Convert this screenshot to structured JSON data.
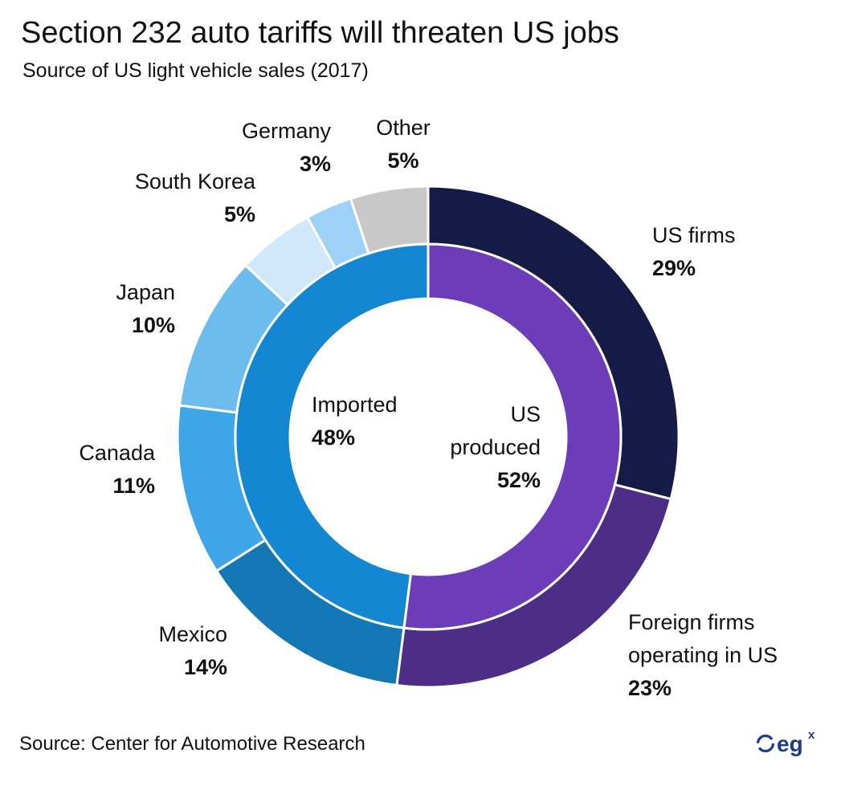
{
  "title": "Section 232 auto tariffs will threaten US jobs",
  "subtitle": "Source of US light vehicle sales (2017)",
  "source": "Source: Center for Automotive Research",
  "logo": {
    "text": "eg",
    "superscript": "x",
    "icon": "egx-logo-icon",
    "color": "#1f3a8a"
  },
  "chart_data": {
    "type": "pie",
    "style": "nested-donut",
    "inner_ring": {
      "labels": [
        "US produced",
        "Imported"
      ],
      "label_lines": [
        [
          "US",
          "produced"
        ],
        [
          "Imported"
        ]
      ],
      "values": [
        52,
        48
      ],
      "value_labels": [
        "52%",
        "48%"
      ],
      "colors": [
        "#6c3cb9",
        "#1487d3"
      ]
    },
    "outer_ring": {
      "labels": [
        "US firms",
        "Foreign firms operating in US",
        "Mexico",
        "Canada",
        "Japan",
        "South Korea",
        "Germany",
        "Other"
      ],
      "label_lines": [
        [
          "US firms"
        ],
        [
          "Foreign firms",
          "operating in US"
        ],
        [
          "Mexico"
        ],
        [
          "Canada"
        ],
        [
          "Japan"
        ],
        [
          "South Korea"
        ],
        [
          "Germany"
        ],
        [
          "Other"
        ]
      ],
      "values": [
        29,
        23,
        14,
        11,
        10,
        5,
        3,
        5
      ],
      "value_labels": [
        "29%",
        "23%",
        "14%",
        "11%",
        "10%",
        "5%",
        "3%",
        "5%"
      ],
      "colors": [
        "#161a46",
        "#4d2d86",
        "#1377b5",
        "#3ea6e8",
        "#6cbcee",
        "#d0e8f9",
        "#9dd1f5",
        "#c8c8c8"
      ]
    }
  }
}
